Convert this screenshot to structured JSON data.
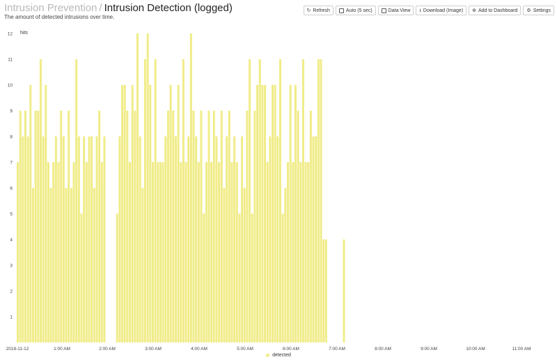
{
  "header": {
    "breadcrumb_parent": "Intrusion Prevention",
    "separator": "/",
    "title": "Intrusion Detection (logged)",
    "subtitle": "The amount of detected intrusions over time."
  },
  "toolbar": {
    "refresh_label": "Refresh",
    "auto_label": "Auto (5 sec)",
    "data_view_label": "Data View",
    "download_label": "Download (Image)",
    "add_dashboard_label": "Add to Dashboard",
    "settings_label": "Settings"
  },
  "icons": {
    "refresh": "refresh-icon",
    "auto": "checkbox-icon",
    "data_view": "checkbox-icon",
    "download": "download-icon",
    "add_dashboard": "plus-circle-icon",
    "settings": "gear-icon"
  },
  "colors": {
    "bar": "#f0ec88",
    "legend_dot": "#f0ec88"
  },
  "chart_data": {
    "type": "bar",
    "ylabel": "hits",
    "xlabel": "",
    "ylim": [
      0,
      12
    ],
    "yticks": [
      1,
      2,
      3,
      4,
      5,
      6,
      7,
      8,
      9,
      10,
      11,
      12
    ],
    "grid": false,
    "legend_placement": "bottom",
    "x_start": "2018-11-12 00:00",
    "x_end": "2018-11-12 11:20",
    "x_tick_labels": [
      "2018-11-12",
      "1:00 AM",
      "2:00 AM",
      "3:00 AM",
      "4:00 AM",
      "5:00 AM",
      "6:00 AM",
      "7:00 AM",
      "8:00 AM",
      "9:00 AM",
      "10:00 AM",
      "11:00 AM"
    ],
    "series": [
      {
        "name": "detected",
        "values": [
          7,
          9,
          8,
          9,
          8,
          10,
          6,
          9,
          9,
          11,
          8,
          10,
          7,
          6,
          7,
          8,
          7,
          9,
          8,
          6,
          9,
          6,
          7,
          11,
          8,
          5,
          8,
          7,
          8,
          8,
          6,
          8,
          9,
          7,
          8,
          0,
          0,
          0,
          0,
          5,
          8,
          10,
          10,
          9,
          7,
          10,
          9,
          12,
          8,
          6,
          11,
          12,
          10,
          7,
          11,
          7,
          7,
          7,
          8,
          9,
          10,
          9,
          8,
          10,
          7,
          11,
          7,
          8,
          12,
          9,
          8,
          7,
          9,
          5,
          7,
          9,
          7,
          9,
          8,
          7,
          9,
          6,
          8,
          9,
          7,
          8,
          7,
          5,
          8,
          6,
          9,
          11,
          5,
          9,
          10,
          11,
          10,
          10,
          7,
          8,
          10,
          10,
          8,
          11,
          5,
          6,
          7,
          10,
          7,
          10,
          9,
          7,
          11,
          7,
          7,
          9,
          8,
          8,
          11,
          11,
          4,
          4,
          0,
          0,
          0,
          0,
          0,
          0,
          4
        ],
        "color": "#f0ec88"
      }
    ]
  },
  "legend": {
    "label": "detected"
  }
}
